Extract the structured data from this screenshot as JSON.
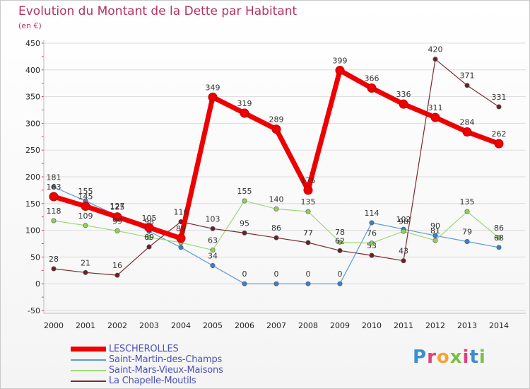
{
  "header": {
    "title": "Evolution du Montant de la Dette par Habitant",
    "unit": "(en €)"
  },
  "colors": {
    "title": "#b5335e",
    "legend_text": "#4b52b8",
    "axis": "#bbbbbb",
    "grid": "#dcdcdc"
  },
  "logo": {
    "text": "Proxiti",
    "letter_colors": [
      "#3a8fd1",
      "#e0427a",
      "#f1a53b",
      "#7ac043",
      "#e0427a",
      "#3a8fd1",
      "#7ac043"
    ]
  },
  "chart_data": {
    "type": "line",
    "categories": [
      "2000",
      "2001",
      "2002",
      "2003",
      "2004",
      "2005",
      "2006",
      "2007",
      "2008",
      "2009",
      "2010",
      "2011",
      "2012",
      "2013",
      "2014"
    ],
    "ylim": [
      -50,
      450
    ],
    "yticks": [
      -50,
      0,
      50,
      100,
      150,
      200,
      250,
      300,
      350,
      400,
      450
    ],
    "grid": "horizontal",
    "legend_position": "bottom-left",
    "series": [
      {
        "name": "Saint-Martin-des-Champs",
        "color": "#5b9bd5",
        "marker": "#3b7fc4",
        "width": 1.2,
        "values": [
          181,
          155,
          127,
          98,
          68,
          34,
          0,
          0,
          0,
          0,
          114,
          102,
          90,
          79,
          68
        ],
        "labels": [
          "181",
          "155",
          "127",
          "98",
          "",
          "34",
          "0",
          "0",
          "0",
          "0",
          "114",
          "102",
          "90",
          "79",
          "68"
        ]
      },
      {
        "name": "Saint-Mars-Vieux-Maisons",
        "color": "#9fd77a",
        "marker": "#8fd05c",
        "width": 1.2,
        "values": [
          118,
          109,
          99,
          87,
          77,
          63,
          155,
          140,
          135,
          78,
          76,
          98,
          81,
          135,
          86
        ],
        "labels": [
          "118",
          "109",
          "99",
          "",
          "",
          "63",
          "155",
          "140",
          "135",
          "78",
          "76",
          "98",
          "81",
          "135",
          "86"
        ]
      },
      {
        "name": "La Chapelle-Moutils",
        "color": "#7a2a30",
        "marker": "#6b1f26",
        "width": 1.2,
        "values": [
          28,
          21,
          16,
          69,
          116,
          103,
          95,
          86,
          77,
          62,
          53,
          43,
          420,
          371,
          331
        ],
        "labels": [
          "28",
          "21",
          "16",
          "69",
          "116",
          "103",
          "95",
          "86",
          "77",
          "62",
          "53",
          "43",
          "420",
          "371",
          "331"
        ]
      },
      {
        "name": "LESCHEROLLES",
        "color": "#ee0000",
        "marker": "#ee0000",
        "width": 7,
        "values": [
          163,
          145,
          125,
          105,
          85,
          349,
          319,
          289,
          175,
          399,
          366,
          336,
          311,
          284,
          262
        ],
        "labels": [
          "163",
          "145",
          "125",
          "105",
          "85",
          "349",
          "319",
          "289",
          "175",
          "399",
          "366",
          "336",
          "311",
          "284",
          "262"
        ]
      }
    ]
  },
  "legend": {
    "items": [
      {
        "label": "LESCHEROLLES",
        "color": "#ee0000",
        "thickness": 7
      },
      {
        "label": "Saint-Martin-des-Champs",
        "color": "#5b9bd5",
        "thickness": 2
      },
      {
        "label": "Saint-Mars-Vieux-Maisons",
        "color": "#9fd77a",
        "thickness": 2
      },
      {
        "label": "La Chapelle-Moutils",
        "color": "#7a2a30",
        "thickness": 2
      }
    ]
  }
}
